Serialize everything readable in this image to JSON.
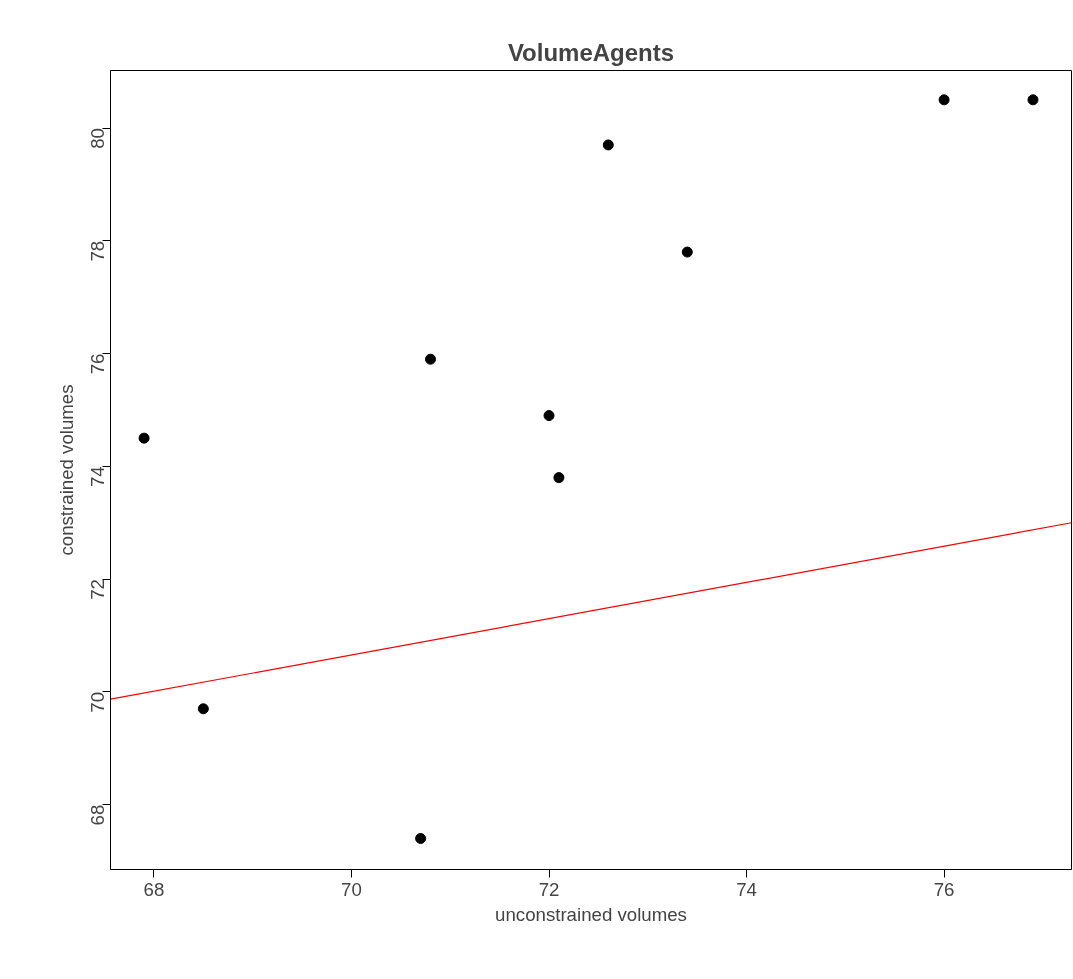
{
  "chart_data": {
    "type": "scatter",
    "title": "VolumeAgents",
    "xlabel": "unconstrained volumes",
    "ylabel": "constrained volumes",
    "xlim": [
      67.56,
      77.29
    ],
    "ylim": [
      66.85,
      81.02
    ],
    "xticks": [
      68,
      70,
      72,
      74,
      76
    ],
    "yticks": [
      68,
      70,
      72,
      74,
      76,
      78,
      80
    ],
    "grid": false,
    "series": [
      {
        "marker": "circle",
        "color": "#000000",
        "x": [
          67.9,
          68.5,
          70.7,
          70.8,
          72.0,
          72.1,
          72.6,
          73.4,
          76.0,
          76.9
        ],
        "values": [
          74.5,
          69.7,
          67.4,
          75.9,
          74.9,
          73.8,
          79.7,
          77.8,
          80.5,
          80.5
        ]
      },
      {
        "type": "line",
        "marker": "none",
        "color": "#ff0000",
        "x": [
          67.56,
          77.29
        ],
        "values": [
          69.87,
          73.0
        ]
      }
    ]
  }
}
